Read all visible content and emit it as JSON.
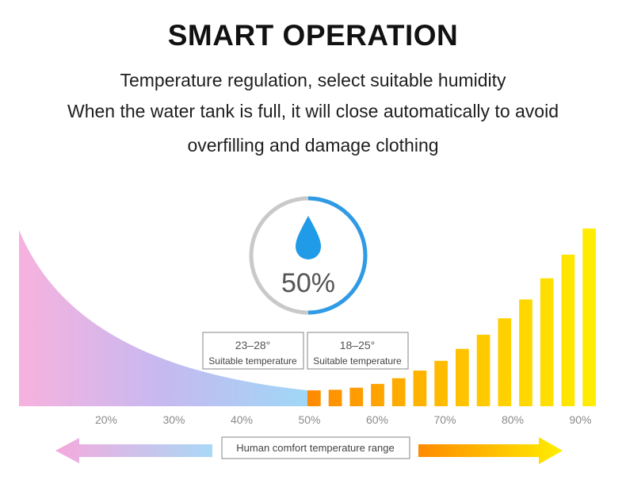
{
  "title": "SMART OPERATION",
  "subtitle_lines": [
    "Temperature regulation, select suitable humidity",
    "When the water tank is full, it will close automatically to avoid",
    "overfilling and damage clothing"
  ],
  "gauge": {
    "value_text": "50%",
    "level_fraction": 0.5,
    "icon": "water-drop-icon",
    "ring_color": "#c9c9c9",
    "arc_color": "#2f9be6"
  },
  "temperature_boxes": [
    {
      "range": "23–28°",
      "label": "Suitable temperature"
    },
    {
      "range": "18–25°",
      "label": "Suitable temperature"
    }
  ],
  "humidity_axis": [
    "20%",
    "30%",
    "40%",
    "50%",
    "60%",
    "70%",
    "80%",
    "90%"
  ],
  "range_label": "Human comfort temperature range",
  "arrows": [
    {
      "direction": "left",
      "colors": [
        "#f5a9dc",
        "#a9d8f7"
      ]
    },
    {
      "direction": "right",
      "colors": [
        "#ff8a00",
        "#ffee00"
      ]
    }
  ],
  "colors": {
    "curve_start": "#f7b2de",
    "curve_mid": "#c5b8f0",
    "curve_end": "#9fd7f7",
    "bars_start": "#ff8a00",
    "bars_end": "#ffee00"
  }
}
